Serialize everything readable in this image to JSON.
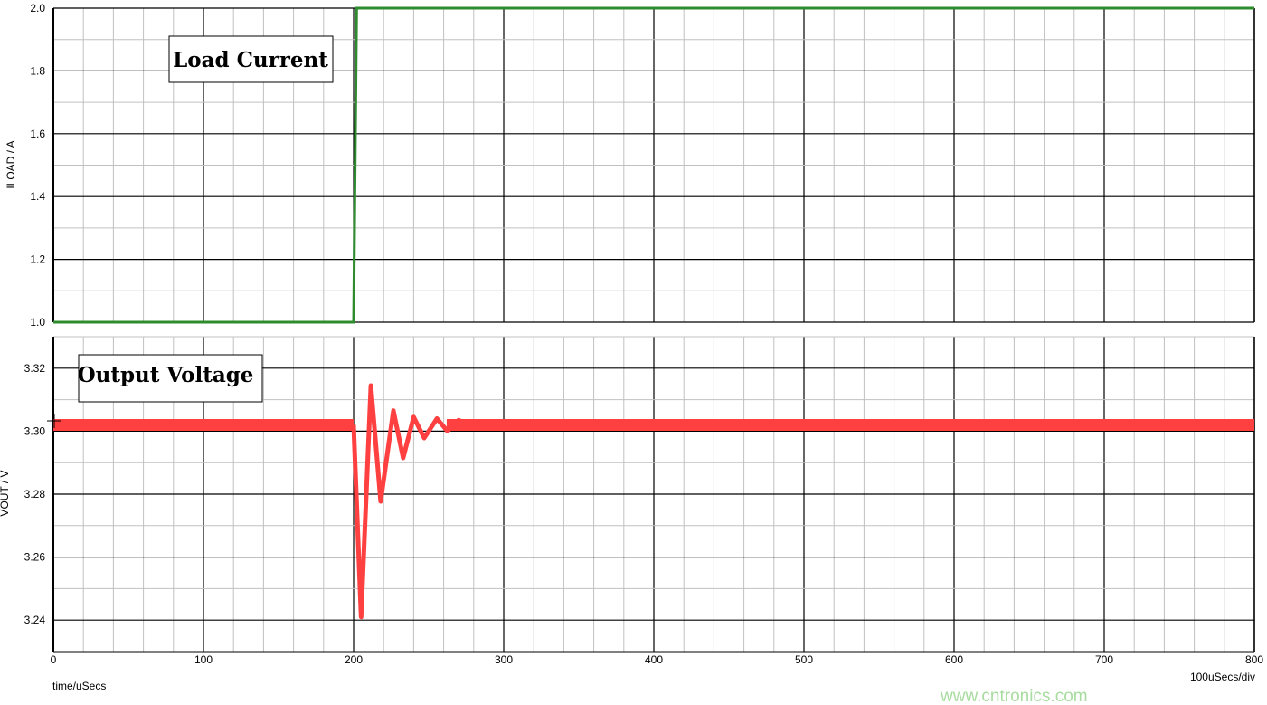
{
  "chart_data": [
    {
      "type": "line",
      "title": "",
      "annotation": "Load Current",
      "xlabel": "",
      "ylabel": "ILOAD / A",
      "xlim": [
        0,
        800
      ],
      "ylim": [
        1.0,
        2.0
      ],
      "yticks": [
        "1.0",
        "1.2",
        "1.4",
        "1.6",
        "1.8",
        "2.0"
      ],
      "grid": true,
      "series": [
        {
          "color": "#2e8b2e",
          "x": [
            0,
            200,
            202,
            800
          ],
          "y": [
            1.0,
            1.0,
            2.0,
            2.0
          ]
        }
      ]
    },
    {
      "type": "line",
      "title": "",
      "annotation": "Output Voltage",
      "xlabel": "time/uSecs",
      "ylabel": "VOUT / V",
      "xlim": [
        0,
        800
      ],
      "ylim": [
        3.23,
        3.33
      ],
      "yticks": [
        "3.24",
        "3.26",
        "3.28",
        "3.30",
        "3.32"
      ],
      "xticks": [
        "0",
        "100",
        "200",
        "300",
        "400",
        "500",
        "600",
        "700",
        "800"
      ],
      "grid": true,
      "series": [
        {
          "color": "#ff4040",
          "x": [
            0,
            200,
            205,
            211.5,
            218,
            226.5,
            233,
            240,
            247,
            255.5,
            262.5,
            270,
            280,
            290,
            800
          ],
          "y": [
            3.302,
            3.302,
            3.241,
            3.3145,
            3.2777,
            3.3065,
            3.2915,
            3.3045,
            3.2978,
            3.304,
            3.3,
            3.3035,
            3.301,
            3.302,
            3.302
          ]
        }
      ]
    }
  ],
  "scale_label": "100uSecs/div",
  "watermark": "www.cntronics.com"
}
